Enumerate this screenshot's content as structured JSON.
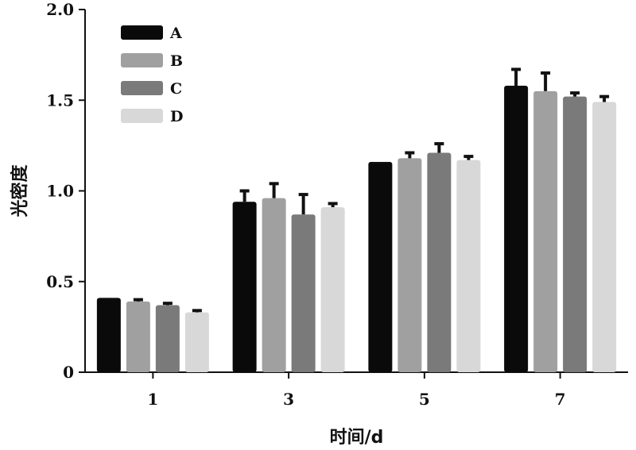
{
  "chart_data": {
    "type": "bar",
    "title": "",
    "xlabel": "时间/d",
    "ylabel": "光密度",
    "categories": [
      "1",
      "3",
      "5",
      "7"
    ],
    "ylim": [
      0,
      2.0
    ],
    "yticks": [
      "0",
      "0.5",
      "1.0",
      "1.5",
      "2.0"
    ],
    "grid": false,
    "legend_position": "top-left",
    "error_bars": true,
    "series": [
      {
        "name": "A",
        "color": "#0a0a0a",
        "values": [
          0.41,
          0.94,
          1.16,
          1.58
        ],
        "errors": [
          0.0,
          0.06,
          0.0,
          0.09
        ]
      },
      {
        "name": "B",
        "color": "#a0a0a0",
        "values": [
          0.39,
          0.96,
          1.18,
          1.55
        ],
        "errors": [
          0.01,
          0.08,
          0.03,
          0.1
        ]
      },
      {
        "name": "C",
        "color": "#7a7a7a",
        "values": [
          0.37,
          0.87,
          1.21,
          1.52
        ],
        "errors": [
          0.01,
          0.11,
          0.05,
          0.02
        ]
      },
      {
        "name": "D",
        "color": "#d8d8d8",
        "values": [
          0.33,
          0.91,
          1.17,
          1.49
        ],
        "errors": [
          0.01,
          0.02,
          0.02,
          0.03
        ]
      }
    ]
  }
}
